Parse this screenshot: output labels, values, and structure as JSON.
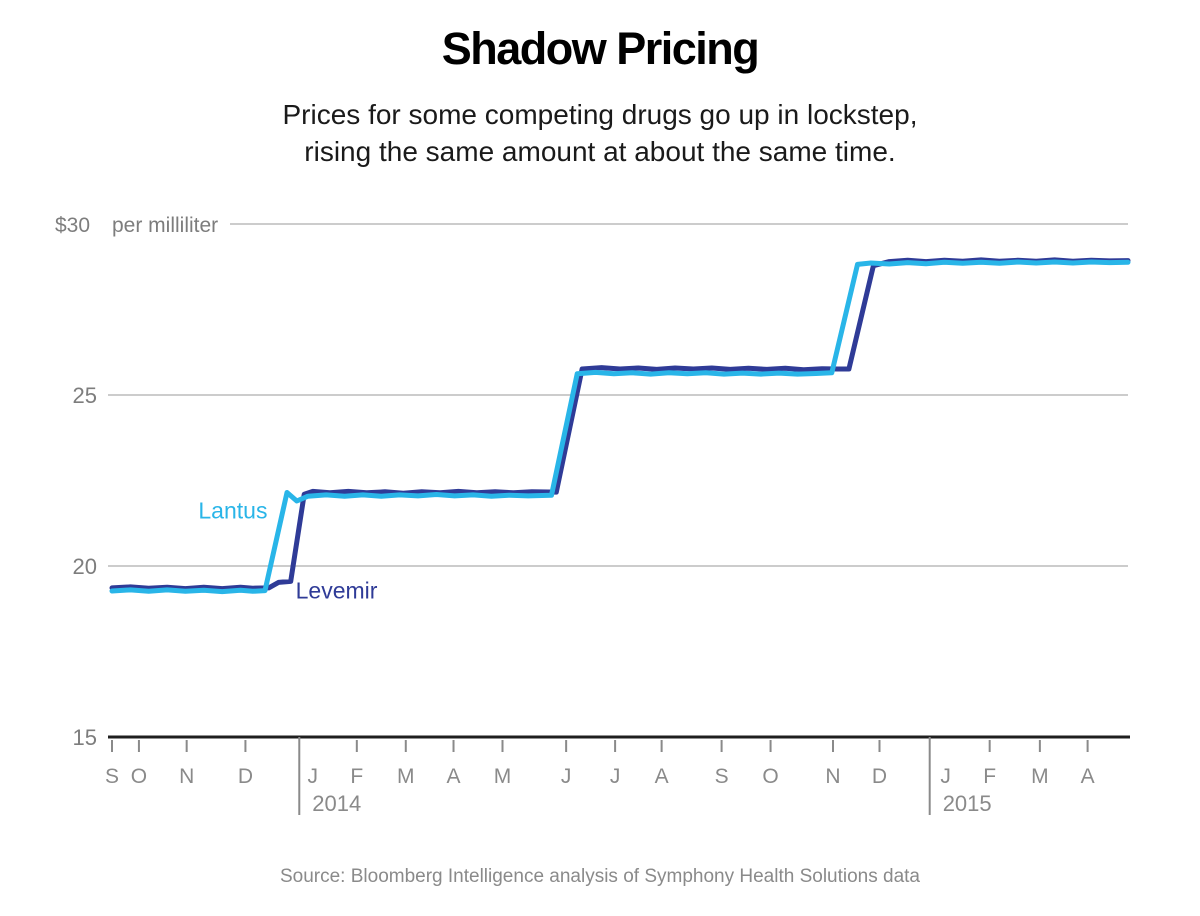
{
  "title": "Shadow Pricing",
  "subtitle_line1": "Prices for some competing drugs go up in lockstep,",
  "subtitle_line2": "rising the same amount at about the same time.",
  "source": "Source: Bloomberg Intelligence analysis of Symphony Health Solutions data",
  "colors": {
    "lantus": "#29b5e8",
    "levemir": "#2f3b97",
    "grid": "#cccccc",
    "axis": "#1f1f1f",
    "tick": "#8a8a8a",
    "axis_text": "#7d7d7d",
    "month_text": "#8a8a8a"
  },
  "chart_data": {
    "type": "line",
    "title": "Shadow Pricing",
    "x_unit": "weeks since mid-September 2013",
    "y_unit": "US dollars per milliliter",
    "xlim": [
      0,
      83
    ],
    "ylim": [
      15,
      30
    ],
    "grid": "horizontal",
    "legend_position": "inline-labels",
    "y_ticks": [
      {
        "v": 30,
        "label": "$30",
        "unit": "per milliliter"
      },
      {
        "v": 25,
        "label": "25"
      },
      {
        "v": 20,
        "label": "20"
      },
      {
        "v": 15,
        "label": "15"
      }
    ],
    "x_ticks": [
      {
        "w": 0.0,
        "label": "S",
        "tick": true
      },
      {
        "w": 2.2,
        "label": "O",
        "tick": true
      },
      {
        "w": 6.1,
        "label": "N",
        "tick": true
      },
      {
        "w": 10.9,
        "label": "D",
        "tick": true
      },
      {
        "w": 16.4,
        "label": "J",
        "tick": false
      },
      {
        "w": 20.0,
        "label": "F",
        "tick": true
      },
      {
        "w": 24.0,
        "label": "M",
        "tick": true
      },
      {
        "w": 27.9,
        "label": "A",
        "tick": true
      },
      {
        "w": 31.9,
        "label": "M",
        "tick": true
      },
      {
        "w": 37.1,
        "label": "J",
        "tick": true
      },
      {
        "w": 41.1,
        "label": "J",
        "tick": true
      },
      {
        "w": 44.9,
        "label": "A",
        "tick": true
      },
      {
        "w": 49.8,
        "label": "S",
        "tick": true
      },
      {
        "w": 53.8,
        "label": "O",
        "tick": true
      },
      {
        "w": 58.9,
        "label": "N",
        "tick": true
      },
      {
        "w": 62.7,
        "label": "D",
        "tick": true
      },
      {
        "w": 68.1,
        "label": "J",
        "tick": false
      },
      {
        "w": 71.7,
        "label": "F",
        "tick": true
      },
      {
        "w": 75.8,
        "label": "M",
        "tick": true
      },
      {
        "w": 79.7,
        "label": "A",
        "tick": true
      }
    ],
    "year_dividers": [
      {
        "w": 15.3,
        "year": "2014"
      },
      {
        "w": 66.8,
        "year": "2015"
      }
    ],
    "series": [
      {
        "name": "Levemir",
        "color": "#2f3b97",
        "points": [
          [
            0,
            19.36
          ],
          [
            1.5,
            19.39
          ],
          [
            3,
            19.35
          ],
          [
            4.5,
            19.38
          ],
          [
            6,
            19.34
          ],
          [
            7.5,
            19.38
          ],
          [
            9,
            19.34
          ],
          [
            10.5,
            19.38
          ],
          [
            11.5,
            19.35
          ],
          [
            12.8,
            19.36
          ],
          [
            13.6,
            19.52
          ],
          [
            14.6,
            19.55
          ],
          [
            15.7,
            22.1
          ],
          [
            16.4,
            22.18
          ],
          [
            17.8,
            22.14
          ],
          [
            19.3,
            22.18
          ],
          [
            20.8,
            22.14
          ],
          [
            22.3,
            22.17
          ],
          [
            23.8,
            22.13
          ],
          [
            25.3,
            22.17
          ],
          [
            26.8,
            22.14
          ],
          [
            28.3,
            22.18
          ],
          [
            29.8,
            22.14
          ],
          [
            31.3,
            22.17
          ],
          [
            32.8,
            22.14
          ],
          [
            34.3,
            22.17
          ],
          [
            36.3,
            22.16
          ],
          [
            38.4,
            25.76
          ],
          [
            40,
            25.8
          ],
          [
            41.5,
            25.76
          ],
          [
            43,
            25.79
          ],
          [
            44.5,
            25.75
          ],
          [
            46,
            25.79
          ],
          [
            47.5,
            25.76
          ],
          [
            49,
            25.79
          ],
          [
            50.5,
            25.75
          ],
          [
            52,
            25.78
          ],
          [
            53.5,
            25.75
          ],
          [
            55,
            25.78
          ],
          [
            56.5,
            25.74
          ],
          [
            58,
            25.77
          ],
          [
            59.3,
            25.76
          ],
          [
            60.2,
            25.76
          ],
          [
            62.2,
            28.78
          ],
          [
            63.5,
            28.9
          ],
          [
            65,
            28.94
          ],
          [
            66.5,
            28.9
          ],
          [
            68,
            28.94
          ],
          [
            69.5,
            28.91
          ],
          [
            71,
            28.95
          ],
          [
            72.5,
            28.91
          ],
          [
            74,
            28.94
          ],
          [
            75.5,
            28.91
          ],
          [
            77,
            28.95
          ],
          [
            78.5,
            28.91
          ],
          [
            80,
            28.94
          ],
          [
            81.5,
            28.92
          ],
          [
            83,
            28.93
          ]
        ]
      },
      {
        "name": "Lantus",
        "color": "#29b5e8",
        "points": [
          [
            0,
            19.27
          ],
          [
            1.5,
            19.3
          ],
          [
            3,
            19.26
          ],
          [
            4.5,
            19.3
          ],
          [
            6,
            19.26
          ],
          [
            7.5,
            19.29
          ],
          [
            9,
            19.25
          ],
          [
            10.5,
            19.29
          ],
          [
            11.5,
            19.26
          ],
          [
            12.5,
            19.28
          ],
          [
            14.3,
            22.15
          ],
          [
            15.1,
            21.9
          ],
          [
            16,
            22.04
          ],
          [
            17.5,
            22.08
          ],
          [
            19,
            22.04
          ],
          [
            20.5,
            22.08
          ],
          [
            22,
            22.04
          ],
          [
            23.5,
            22.08
          ],
          [
            25,
            22.05
          ],
          [
            26.5,
            22.09
          ],
          [
            28,
            22.05
          ],
          [
            29.5,
            22.08
          ],
          [
            31,
            22.04
          ],
          [
            32.5,
            22.07
          ],
          [
            34,
            22.05
          ],
          [
            35.9,
            22.07
          ],
          [
            38,
            25.62
          ],
          [
            39.5,
            25.66
          ],
          [
            41,
            25.62
          ],
          [
            42.5,
            25.65
          ],
          [
            44,
            25.61
          ],
          [
            45.5,
            25.65
          ],
          [
            47,
            25.62
          ],
          [
            48.5,
            25.65
          ],
          [
            50,
            25.61
          ],
          [
            51.5,
            25.64
          ],
          [
            53,
            25.61
          ],
          [
            54.5,
            25.64
          ],
          [
            56,
            25.61
          ],
          [
            57.5,
            25.63
          ],
          [
            58.8,
            25.65
          ],
          [
            60.9,
            28.82
          ],
          [
            62,
            28.86
          ],
          [
            63.5,
            28.83
          ],
          [
            65,
            28.87
          ],
          [
            66.5,
            28.84
          ],
          [
            68,
            28.88
          ],
          [
            69.5,
            28.85
          ],
          [
            71,
            28.88
          ],
          [
            72.5,
            28.85
          ],
          [
            74,
            28.89
          ],
          [
            75.5,
            28.86
          ],
          [
            77,
            28.89
          ],
          [
            78.5,
            28.86
          ],
          [
            80,
            28.89
          ],
          [
            81.5,
            28.87
          ],
          [
            83,
            28.88
          ]
        ]
      }
    ],
    "series_labels": [
      {
        "text": "Lantus",
        "color": "#29b5e8",
        "w": 12.7,
        "v": 21.62,
        "anchor": "end"
      },
      {
        "text": "Levemir",
        "color": "#2f3b97",
        "w": 15.0,
        "v": 19.28,
        "anchor": "start"
      }
    ]
  }
}
